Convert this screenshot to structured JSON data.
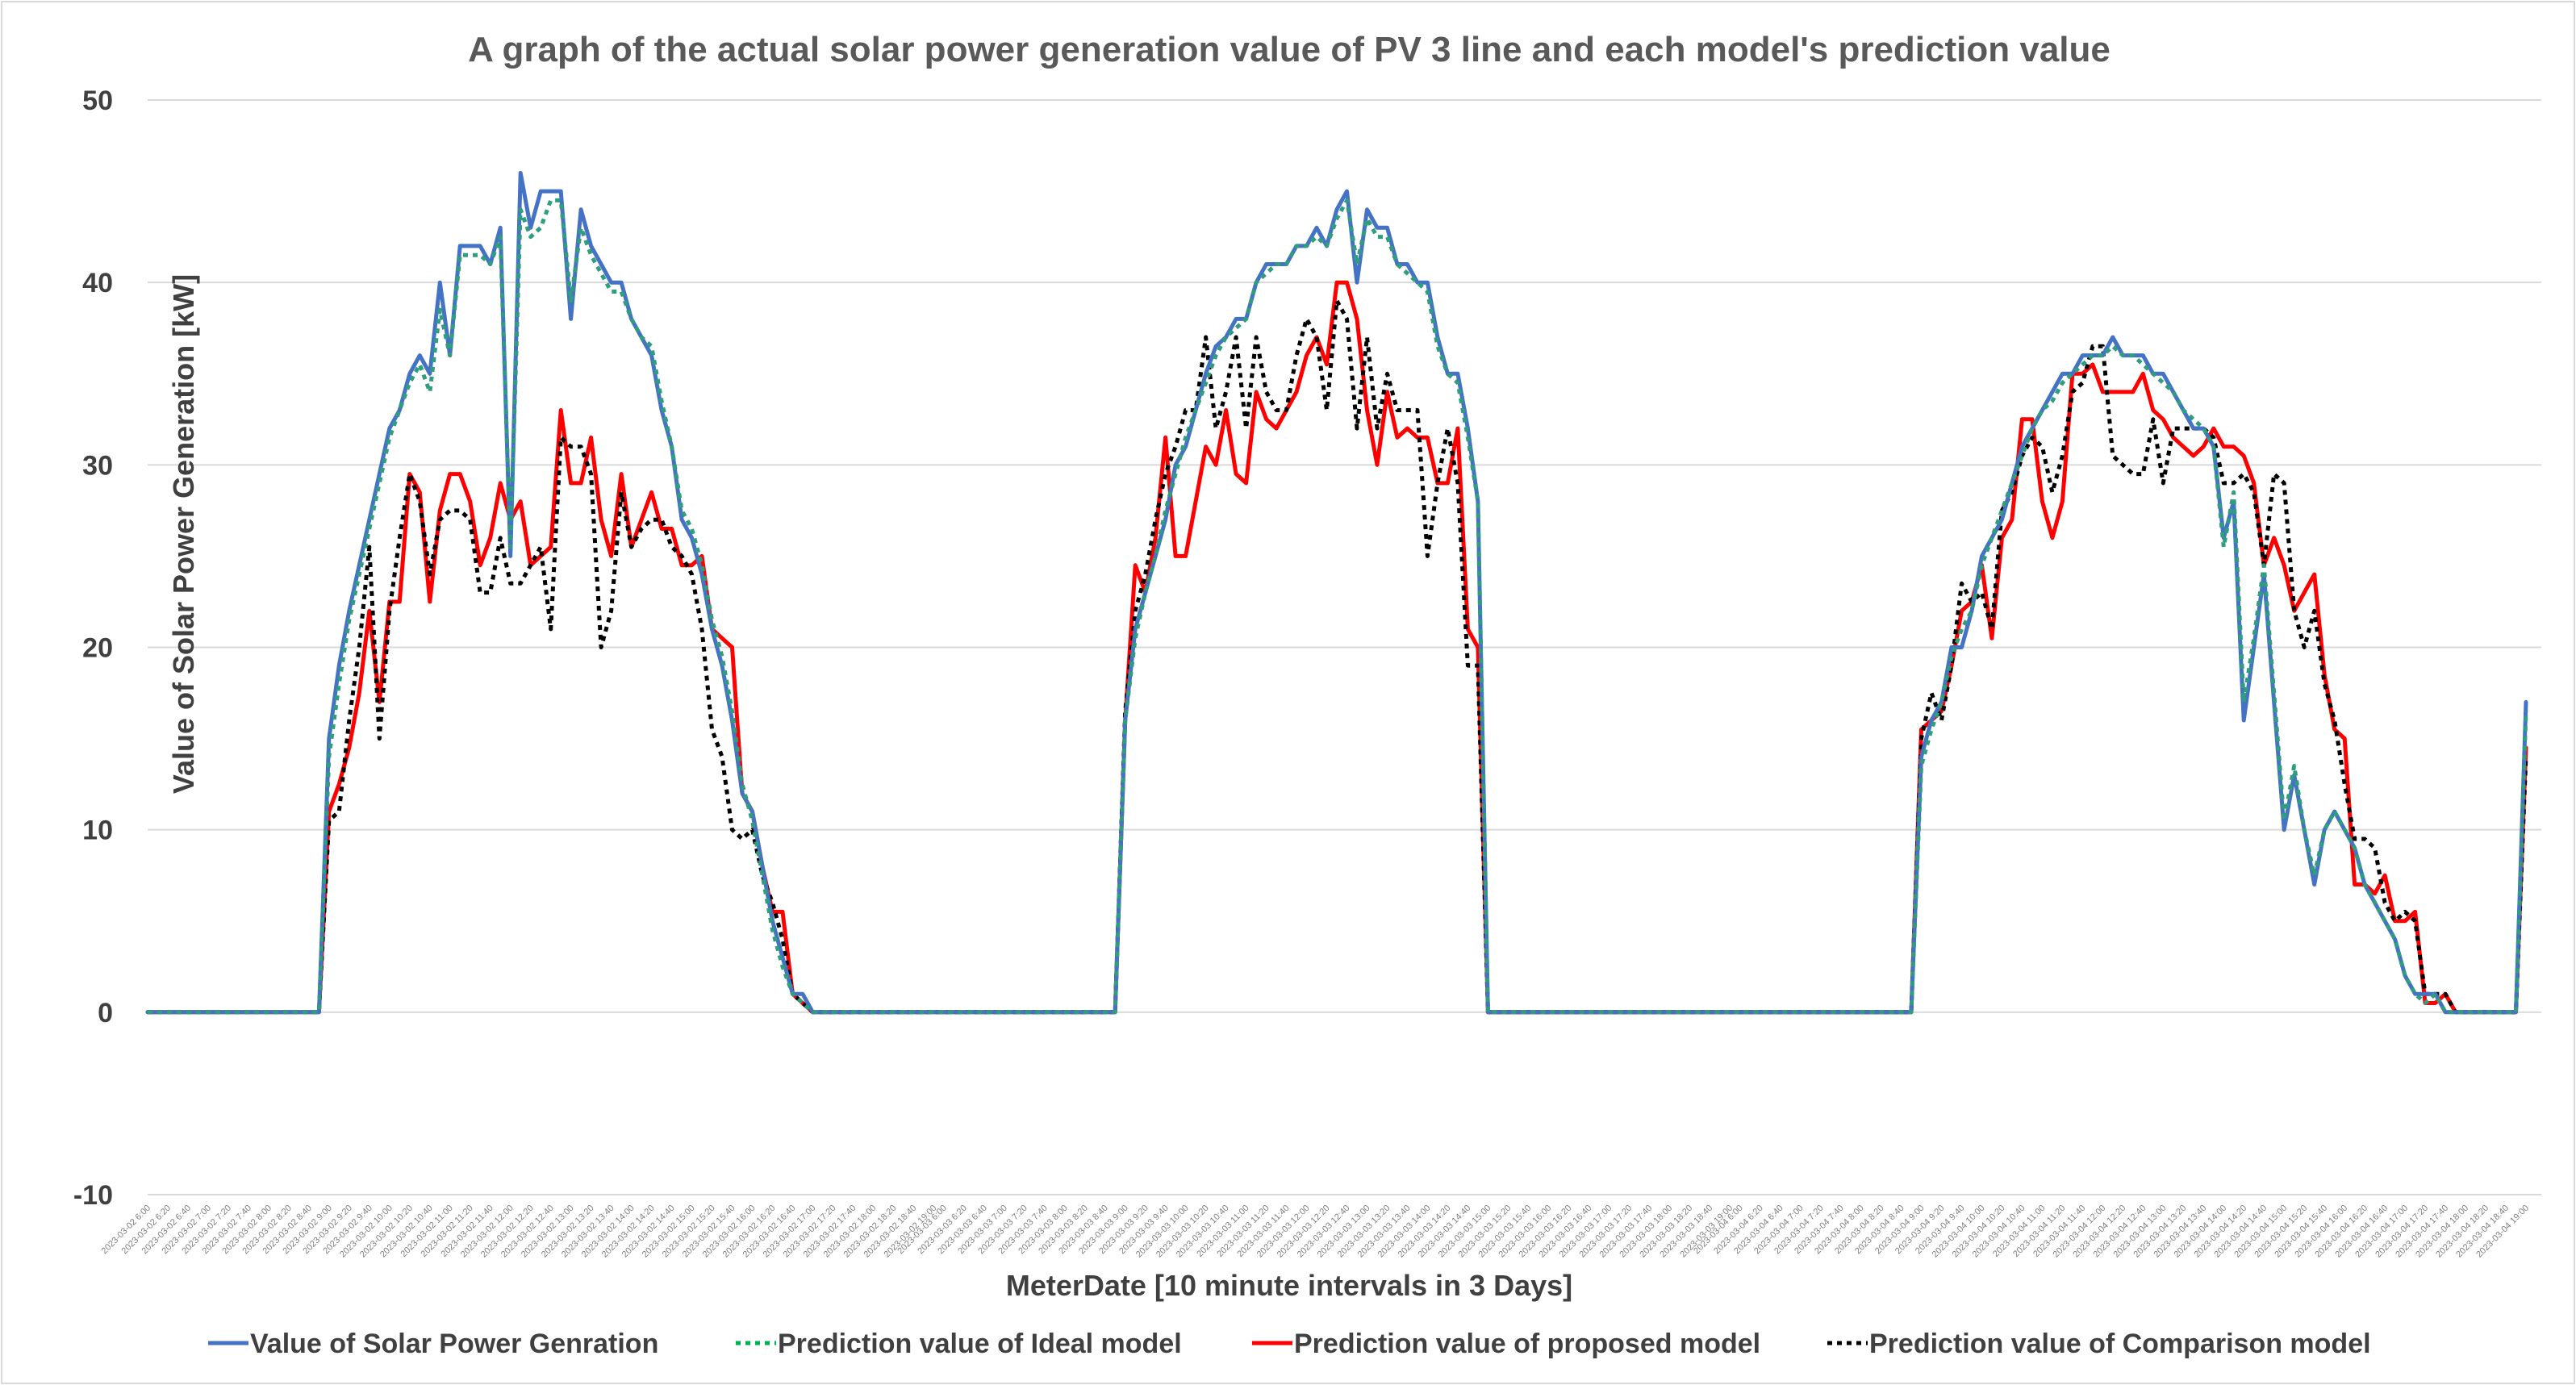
{
  "chart_data": {
    "type": "line",
    "title": "A graph of the actual solar power generation value of PV 3 line and each model's prediction value",
    "xlabel": "MeterDate [10 minute intervals in 3 Days]",
    "ylabel": "Value of Solar Power Generation [kW]",
    "ylim": [
      -10,
      50
    ],
    "yticks": [
      -10,
      0,
      10,
      20,
      30,
      40,
      50
    ],
    "grid": "horizontal",
    "legend_position": "bottom",
    "x_interval_minutes": 10,
    "days": [
      {
        "date": "2023-03-02",
        "start": "6:00",
        "end": "19:00"
      },
      {
        "date": "2023-03-03",
        "start": "6:00",
        "end": "19:00"
      },
      {
        "date": "2023-03-04",
        "start": "6:00",
        "end": "19:00"
      }
    ],
    "x_tick_label_step": 2,
    "series": [
      {
        "name": "Value of Solar Power Genration",
        "color": "#4472c4",
        "style": "solid",
        "days": [
          {
            "start": "9:00",
            "values": [
              15,
              19,
              22,
              24.5,
              27,
              29.5,
              32,
              33,
              35,
              36,
              35,
              40,
              36,
              42,
              42,
              42,
              41,
              43,
              25,
              46,
              43,
              45,
              45,
              45,
              38,
              44,
              42,
              41,
              40,
              40,
              38,
              37,
              36,
              33,
              31,
              27,
              26,
              24,
              21,
              19,
              16,
              12,
              11,
              8,
              5,
              3,
              1,
              1,
              0
            ]
          },
          {
            "start": "9:00",
            "values": [
              16,
              21,
              23,
              25,
              27,
              30,
              31,
              33,
              35,
              36.5,
              37,
              38,
              38,
              40,
              41,
              41,
              41,
              42,
              42,
              43,
              42,
              44,
              45,
              40,
              44,
              43,
              43,
              41,
              41,
              40,
              40,
              37,
              35,
              35,
              32,
              28
            ]
          },
          {
            "start": "9:00",
            "values": [
              14,
              16,
              17,
              20,
              20,
              22,
              25,
              26,
              27,
              29,
              31,
              32,
              33,
              34,
              35,
              35,
              36,
              36,
              36,
              37,
              36,
              36,
              36,
              35,
              35,
              34,
              33,
              32,
              32,
              31,
              26,
              28,
              16,
              20,
              24,
              17,
              10,
              13,
              10,
              7,
              10,
              11,
              10,
              9,
              7,
              6,
              5,
              4,
              2,
              1,
              1,
              1,
              0,
              0,
              0,
              0,
              0,
              0,
              0,
              0,
              17
            ]
          }
        ]
      },
      {
        "name": "Prediction value of Ideal model",
        "color": "#00b050",
        "style": "dotted",
        "days": [
          {
            "start": "9:00",
            "values": [
              14,
              18,
              21.5,
              24,
              26.5,
              29,
              31.5,
              33,
              34.5,
              35.5,
              34,
              38.5,
              36,
              41.5,
              41.5,
              41.5,
              41,
              42.5,
              25.5,
              44,
              42.5,
              43,
              44.5,
              44.5,
              39,
              43,
              41.5,
              40.5,
              39.5,
              39.5,
              38,
              37,
              36.5,
              33.5,
              31,
              27.5,
              26.5,
              24.5,
              21.5,
              19.5,
              16.5,
              12.5,
              10.5,
              7.5,
              4.5,
              2.5,
              1,
              0.5,
              0
            ]
          },
          {
            "start": "9:00",
            "values": [
              16,
              20.5,
              23,
              25,
              27.5,
              29.5,
              31.5,
              33,
              34.5,
              36,
              37,
              37.5,
              38,
              40,
              40.5,
              41,
              41,
              42,
              42,
              42.5,
              42,
              43.5,
              44.5,
              41,
              43.5,
              42.5,
              42.5,
              41,
              40.5,
              40,
              39.5,
              36.5,
              35,
              34.5,
              31.5,
              28
            ]
          },
          {
            "start": "9:00",
            "values": [
              13.5,
              15.5,
              17,
              19.5,
              21,
              22,
              24.5,
              26,
              27.5,
              29,
              30.5,
              32,
              33,
              33.5,
              34.5,
              35,
              35.5,
              36,
              36,
              36.5,
              36,
              36,
              35.5,
              35,
              34.5,
              34,
              33,
              32.5,
              32,
              31,
              25.5,
              28.5,
              17,
              20.5,
              24.5,
              17.5,
              10.5,
              13.5,
              10,
              7.5,
              10,
              11,
              10,
              9,
              7,
              6,
              5,
              4,
              2,
              1,
              0.5,
              1,
              0,
              0,
              0,
              0,
              0,
              0,
              0,
              0,
              16.5
            ]
          }
        ]
      },
      {
        "name": "Prediction value of proposed model",
        "color": "#ff0000",
        "style": "solid",
        "days": [
          {
            "start": "9:00",
            "values": [
              11,
              12.5,
              14.5,
              17.5,
              22,
              17,
              22.5,
              22.5,
              29.5,
              28.5,
              22.5,
              27.5,
              29.5,
              29.5,
              28,
              24.5,
              26,
              29,
              27,
              28,
              24.5,
              25,
              25.5,
              33,
              29,
              29,
              31.5,
              27,
              25,
              29.5,
              25.5,
              27,
              28.5,
              26.5,
              26.5,
              24.5,
              24.5,
              25,
              21,
              20.5,
              20,
              12,
              11,
              8,
              5.5,
              5.5,
              1,
              0.5,
              0
            ]
          },
          {
            "start": "9:00",
            "values": [
              16,
              24.5,
              23,
              26,
              31.5,
              25,
              25,
              28,
              31,
              30,
              33,
              29.5,
              29,
              34,
              32.5,
              32,
              33,
              34,
              36,
              37,
              35.5,
              40,
              40,
              38,
              33,
              30,
              34,
              31.5,
              32,
              31.5,
              31.5,
              29,
              29,
              32,
              21,
              20
            ]
          },
          {
            "start": "9:00",
            "values": [
              15.5,
              16,
              16.5,
              19,
              22,
              22.5,
              24.5,
              20.5,
              26,
              27,
              32.5,
              32.5,
              28,
              26,
              28,
              35,
              35,
              35.5,
              34,
              34,
              34,
              34,
              35,
              33,
              32.5,
              31.5,
              31,
              30.5,
              31,
              32,
              31,
              31,
              30.5,
              29,
              24.5,
              26,
              24.5,
              22,
              23,
              24,
              18.5,
              15.5,
              15,
              7,
              7,
              6.5,
              7.5,
              5,
              5,
              5.5,
              0.5,
              0.5,
              1,
              0,
              0,
              0,
              0,
              0,
              0,
              0,
              14.5
            ]
          }
        ]
      },
      {
        "name": "Prediction value of Comparison model",
        "color": "#000000",
        "style": "dotted",
        "days": [
          {
            "start": "9:00",
            "values": [
              10.5,
              11,
              16,
              20,
              25.5,
              15,
              22,
              26,
              29.5,
              28,
              24,
              27,
              27.5,
              27.5,
              27,
              23,
              23,
              26,
              23.5,
              23.5,
              24.5,
              25.5,
              21,
              31.5,
              31,
              31,
              29.5,
              20,
              22,
              28.5,
              25.5,
              26.5,
              27,
              27,
              25.5,
              25,
              24,
              21,
              15.5,
              14,
              10,
              9.5,
              10,
              7.5,
              6,
              4,
              1,
              0.5,
              0
            ]
          },
          {
            "start": "9:00",
            "values": [
              16.5,
              22,
              24,
              27,
              29.5,
              31,
              33,
              33,
              37,
              32,
              34,
              37,
              32,
              37,
              34,
              33,
              33,
              36,
              38,
              37,
              33,
              39,
              38,
              32,
              37,
              32,
              35,
              33,
              33,
              33,
              25,
              29,
              32,
              29,
              19,
              19
            ]
          },
          {
            "start": "9:00",
            "values": [
              15,
              17.5,
              16,
              19,
              23.5,
              22.5,
              23,
              21,
              27.5,
              28.5,
              30.5,
              31.5,
              31,
              28.5,
              30.5,
              34,
              34.5,
              36.5,
              36.5,
              30.5,
              30,
              29.5,
              29.5,
              32.5,
              29,
              32,
              32,
              32,
              32,
              31.5,
              29,
              29,
              29.5,
              28.5,
              24.5,
              29.5,
              29,
              22,
              20,
              22,
              18,
              16,
              12.5,
              9.5,
              9.5,
              9,
              6,
              5,
              5.5,
              5,
              1,
              1,
              1,
              0,
              0,
              0,
              0,
              0,
              0,
              0,
              14
            ]
          }
        ]
      }
    ]
  }
}
